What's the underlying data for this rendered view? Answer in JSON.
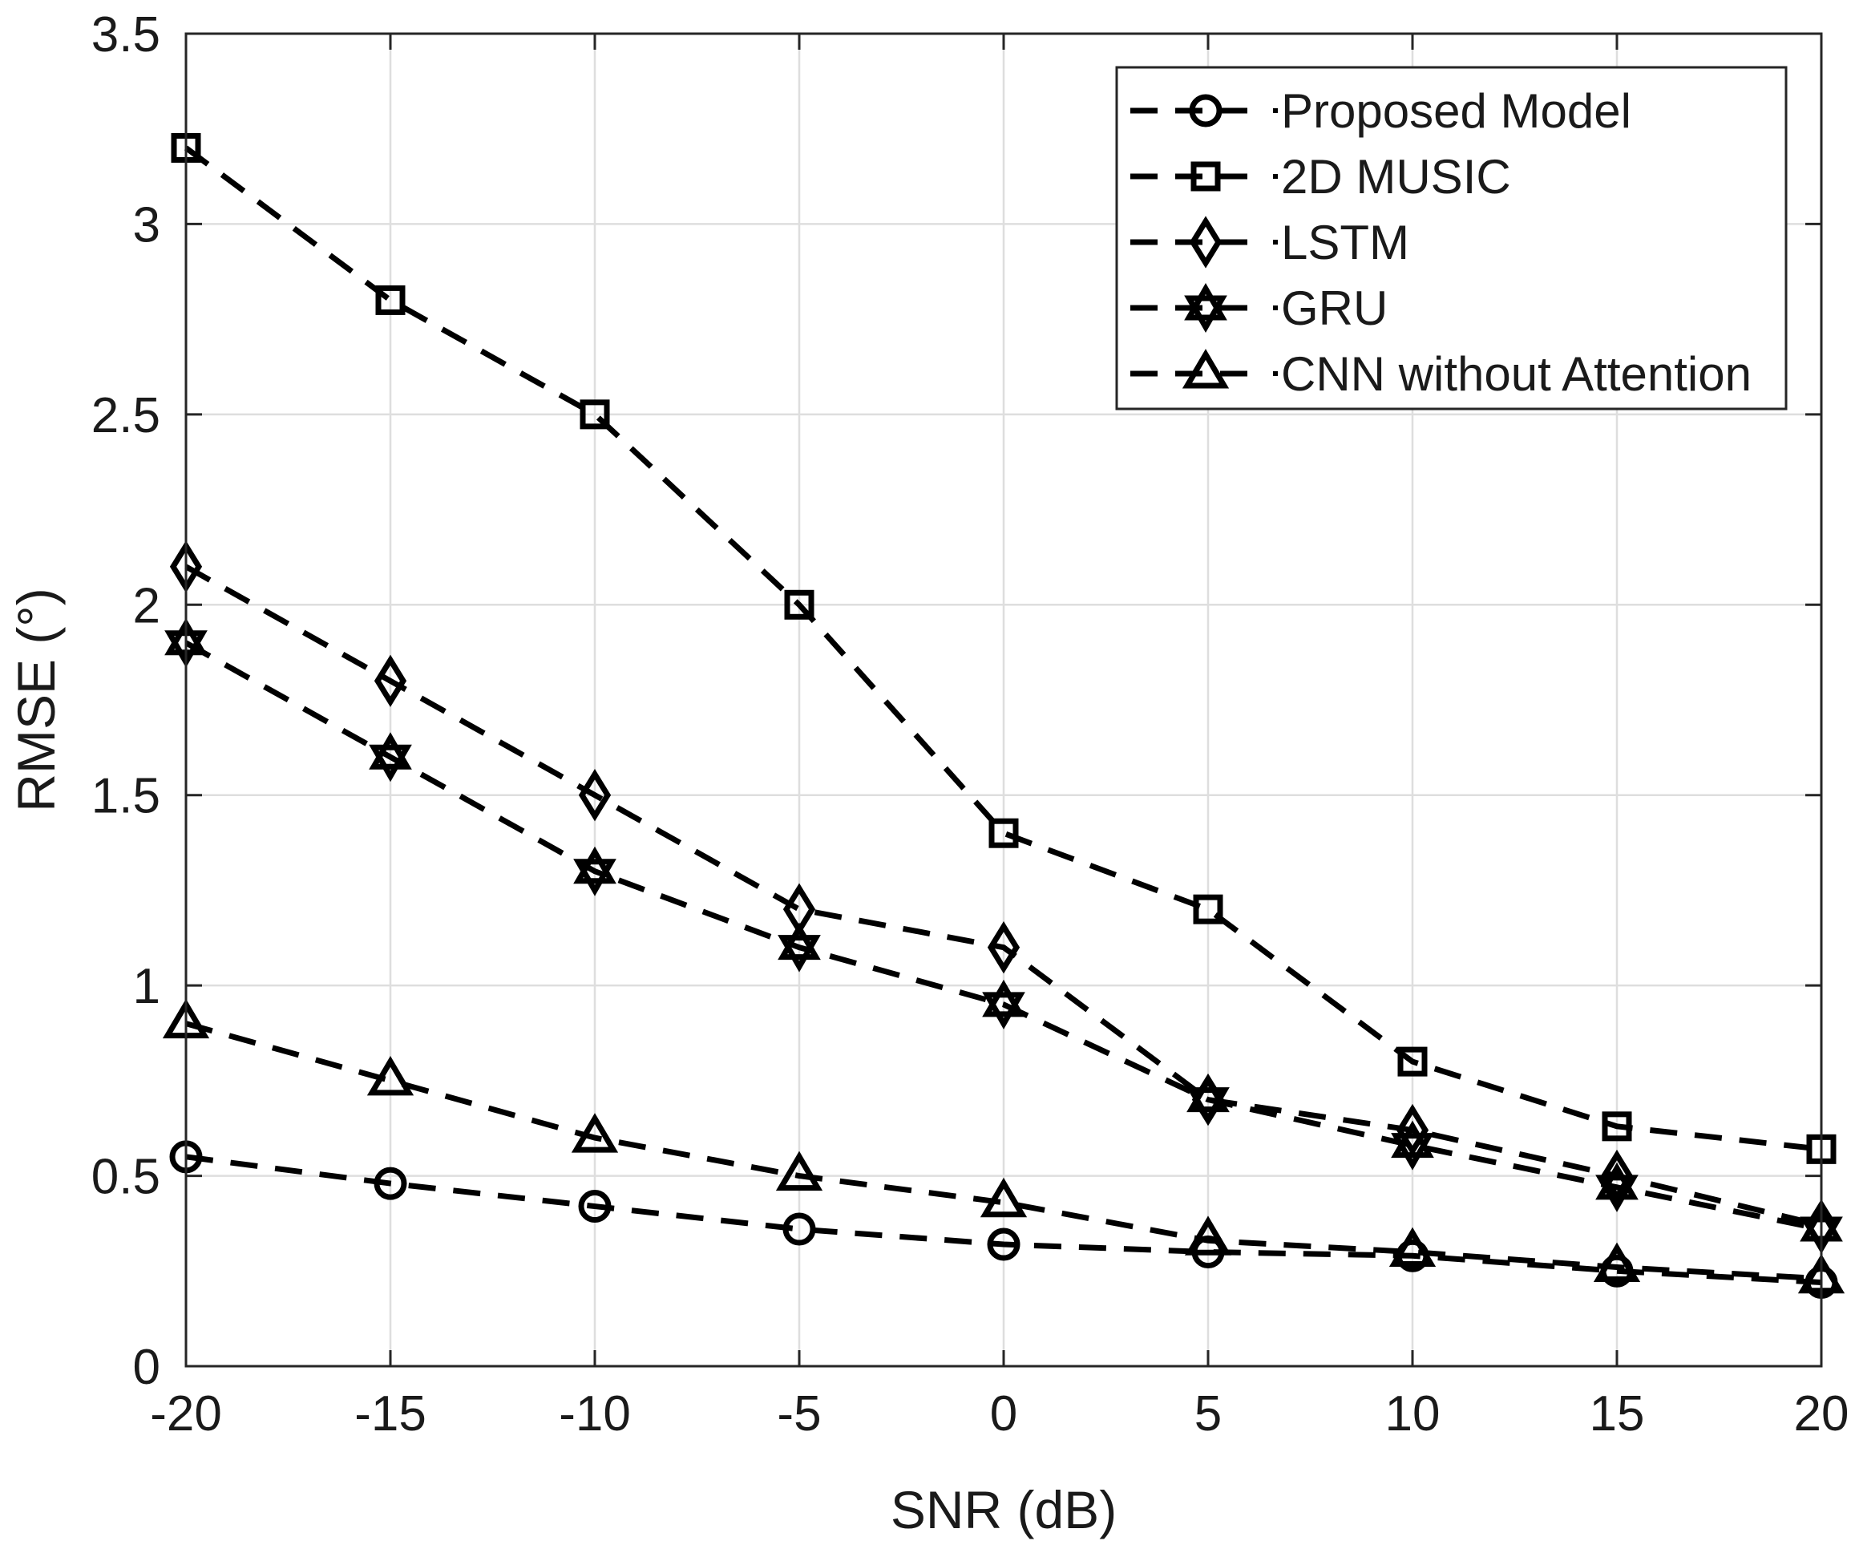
{
  "chart_data": {
    "type": "line",
    "title": "",
    "xlabel": "SNR (dB)",
    "ylabel": "RMSE (°)",
    "xlim": [
      -20,
      20
    ],
    "ylim": [
      0,
      3.5
    ],
    "x": [
      -20,
      -15,
      -10,
      -5,
      0,
      5,
      10,
      15,
      20
    ],
    "xticks": [
      "-20",
      "-15",
      "-10",
      "-5",
      "0",
      "5",
      "10",
      "15",
      "20"
    ],
    "yticks": [
      "0",
      "0.5",
      "1",
      "1.5",
      "2",
      "2.5",
      "3",
      "3.5"
    ],
    "grid": true,
    "legend_position": "top-right",
    "line_style": "dashed",
    "line_color": "#000000",
    "grid_color": "#dedede",
    "series": [
      {
        "name": "Proposed Model",
        "marker": "circle",
        "values": [
          0.55,
          0.48,
          0.42,
          0.36,
          0.32,
          0.3,
          0.29,
          0.25,
          0.22
        ]
      },
      {
        "name": "2D MUSIC",
        "marker": "square",
        "values": [
          3.2,
          2.8,
          2.5,
          2.0,
          1.4,
          1.2,
          0.8,
          0.63,
          0.57
        ]
      },
      {
        "name": "LSTM",
        "marker": "diamond",
        "values": [
          2.1,
          1.8,
          1.5,
          1.2,
          1.1,
          0.7,
          0.62,
          0.5,
          0.37
        ]
      },
      {
        "name": "GRU",
        "marker": "hexagram",
        "values": [
          1.9,
          1.6,
          1.3,
          1.1,
          0.95,
          0.7,
          0.58,
          0.47,
          0.36
        ]
      },
      {
        "name": "CNN without Attention",
        "marker": "triangle",
        "values": [
          0.9,
          0.75,
          0.6,
          0.5,
          0.43,
          0.33,
          0.3,
          0.26,
          0.23
        ]
      }
    ]
  }
}
